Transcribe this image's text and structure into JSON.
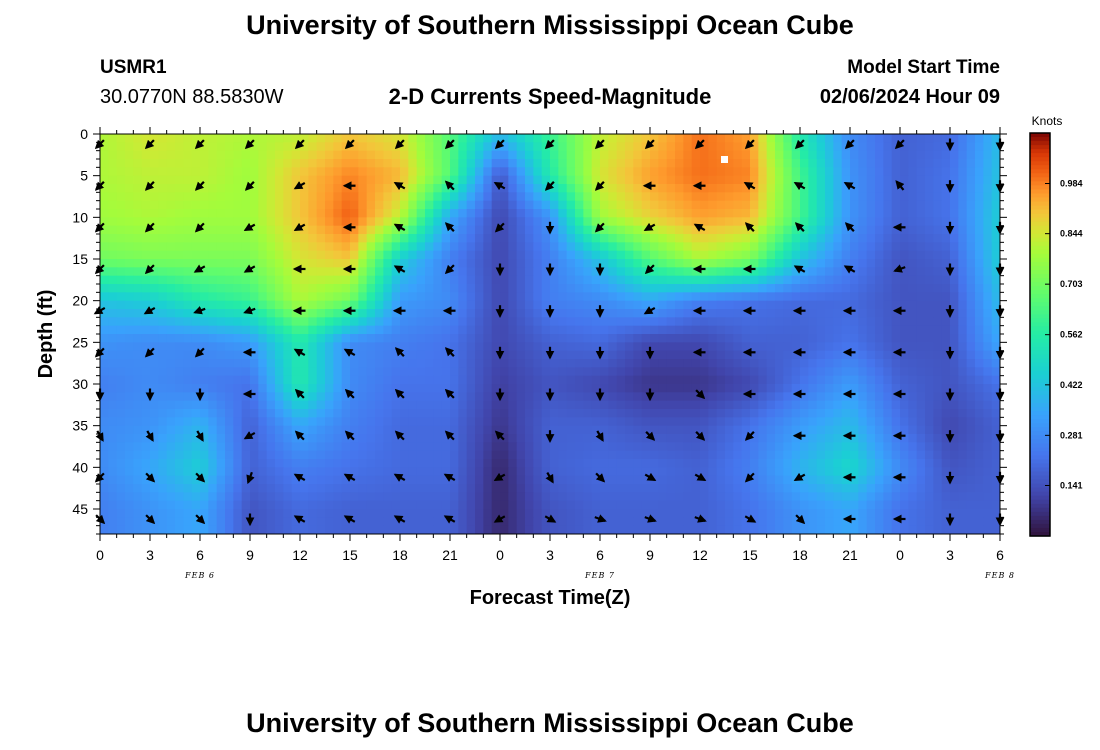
{
  "header": {
    "title": "University of Southern Mississippi Ocean Cube",
    "station_id": "USMR1",
    "station_coords": "30.0770N  88.5830W",
    "subtitle": "2-D Currents Speed-Magnitude",
    "model_start_label": "Model Start Time",
    "model_start_value": "02/06/2024 Hour 09"
  },
  "footer": {
    "title": "University of Southern Mississippi Ocean Cube"
  },
  "chart_data": {
    "type": "heatmap",
    "title": "2-D Currents Speed-Magnitude",
    "xlabel": "Forecast Time(Z)",
    "ylabel": "Depth (ft)",
    "x_hours": [
      0,
      3,
      6,
      9,
      12,
      15,
      18,
      21,
      24,
      27,
      30,
      33,
      36,
      39,
      42,
      45,
      48,
      51,
      54
    ],
    "x_tick_labels": [
      "0",
      "3",
      "6",
      "9",
      "12",
      "15",
      "18",
      "21",
      "0",
      "3",
      "6",
      "9",
      "12",
      "15",
      "18",
      "21",
      "0",
      "3",
      "6"
    ],
    "date_labels": [
      {
        "hour": 6,
        "text": "FEB 6"
      },
      {
        "hour": 30,
        "text": "FEB 7"
      },
      {
        "hour": 54,
        "text": "FEB 8"
      }
    ],
    "xlim": [
      0,
      54
    ],
    "ylim": [
      0,
      48
    ],
    "y_ticks": [
      0,
      5,
      10,
      15,
      20,
      25,
      30,
      35,
      40,
      45
    ],
    "y_inverted": true,
    "colorbar": {
      "unit": "Knots",
      "range": [
        0.0,
        1.125
      ],
      "ticks": [
        0.141,
        0.281,
        0.422,
        0.562,
        0.703,
        0.844,
        0.984
      ]
    },
    "grid": false,
    "depths_ft": [
      0,
      5,
      10,
      15,
      20,
      25,
      30,
      35,
      40,
      45
    ],
    "speed_knots": [
      [
        0.8,
        0.85,
        0.82,
        0.8,
        0.82,
        0.9,
        0.85,
        0.65,
        0.4,
        0.6,
        0.82,
        0.9,
        1.0,
        0.95,
        0.55,
        0.28,
        0.18,
        0.2,
        0.4
      ],
      [
        0.8,
        0.82,
        0.82,
        0.78,
        0.9,
        0.98,
        0.92,
        0.65,
        0.15,
        0.55,
        0.85,
        0.95,
        1.0,
        0.98,
        0.62,
        0.3,
        0.18,
        0.22,
        0.42
      ],
      [
        0.78,
        0.8,
        0.78,
        0.78,
        0.9,
        1.02,
        0.82,
        0.35,
        0.12,
        0.3,
        0.78,
        0.88,
        0.95,
        0.92,
        0.62,
        0.3,
        0.18,
        0.22,
        0.45
      ],
      [
        0.7,
        0.72,
        0.72,
        0.72,
        0.85,
        0.9,
        0.45,
        0.25,
        0.12,
        0.25,
        0.42,
        0.65,
        0.8,
        0.72,
        0.42,
        0.25,
        0.15,
        0.18,
        0.45
      ],
      [
        0.42,
        0.45,
        0.55,
        0.6,
        0.8,
        0.7,
        0.32,
        0.28,
        0.12,
        0.25,
        0.28,
        0.35,
        0.25,
        0.22,
        0.2,
        0.2,
        0.15,
        0.15,
        0.4
      ],
      [
        0.3,
        0.28,
        0.28,
        0.32,
        0.55,
        0.28,
        0.25,
        0.22,
        0.12,
        0.18,
        0.2,
        0.12,
        0.12,
        0.18,
        0.18,
        0.22,
        0.15,
        0.15,
        0.35
      ],
      [
        0.25,
        0.28,
        0.25,
        0.22,
        0.55,
        0.28,
        0.22,
        0.22,
        0.1,
        0.15,
        0.12,
        0.08,
        0.08,
        0.12,
        0.22,
        0.32,
        0.18,
        0.15,
        0.22
      ],
      [
        0.28,
        0.3,
        0.38,
        0.18,
        0.35,
        0.25,
        0.2,
        0.2,
        0.08,
        0.18,
        0.18,
        0.15,
        0.15,
        0.22,
        0.32,
        0.4,
        0.22,
        0.12,
        0.18
      ],
      [
        0.28,
        0.35,
        0.45,
        0.18,
        0.25,
        0.22,
        0.2,
        0.2,
        0.05,
        0.18,
        0.2,
        0.2,
        0.18,
        0.25,
        0.38,
        0.48,
        0.28,
        0.15,
        0.18
      ],
      [
        0.25,
        0.3,
        0.35,
        0.15,
        0.2,
        0.18,
        0.18,
        0.18,
        0.05,
        0.15,
        0.18,
        0.18,
        0.18,
        0.22,
        0.3,
        0.35,
        0.22,
        0.18,
        0.18
      ]
    ],
    "direction_deg": [
      [
        225,
        225,
        225,
        225,
        225,
        225,
        225,
        225,
        225,
        225,
        225,
        225,
        225,
        225,
        225,
        225,
        225,
        180,
        180
      ],
      [
        225,
        225,
        225,
        225,
        240,
        270,
        300,
        315,
        300,
        225,
        225,
        270,
        270,
        300,
        300,
        300,
        320,
        180,
        180
      ],
      [
        225,
        225,
        225,
        240,
        240,
        270,
        300,
        315,
        225,
        180,
        225,
        240,
        300,
        315,
        315,
        315,
        270,
        180,
        180
      ],
      [
        225,
        225,
        240,
        240,
        270,
        270,
        300,
        225,
        180,
        180,
        180,
        225,
        270,
        270,
        300,
        300,
        250,
        180,
        180
      ],
      [
        240,
        240,
        250,
        250,
        270,
        270,
        270,
        270,
        180,
        180,
        180,
        240,
        270,
        270,
        270,
        270,
        270,
        180,
        180
      ],
      [
        225,
        225,
        225,
        270,
        300,
        300,
        315,
        315,
        180,
        180,
        180,
        180,
        270,
        270,
        270,
        270,
        270,
        180,
        180
      ],
      [
        180,
        180,
        180,
        270,
        315,
        315,
        315,
        315,
        180,
        180,
        180,
        180,
        135,
        270,
        270,
        270,
        270,
        180,
        180
      ],
      [
        150,
        150,
        150,
        240,
        315,
        315,
        315,
        315,
        315,
        180,
        150,
        135,
        135,
        225,
        270,
        270,
        270,
        180,
        180
      ],
      [
        225,
        135,
        135,
        200,
        300,
        300,
        300,
        300,
        240,
        150,
        135,
        120,
        120,
        225,
        240,
        270,
        270,
        180,
        180
      ],
      [
        135,
        135,
        135,
        180,
        300,
        300,
        300,
        300,
        240,
        120,
        110,
        110,
        110,
        120,
        135,
        270,
        270,
        180,
        180
      ]
    ]
  }
}
